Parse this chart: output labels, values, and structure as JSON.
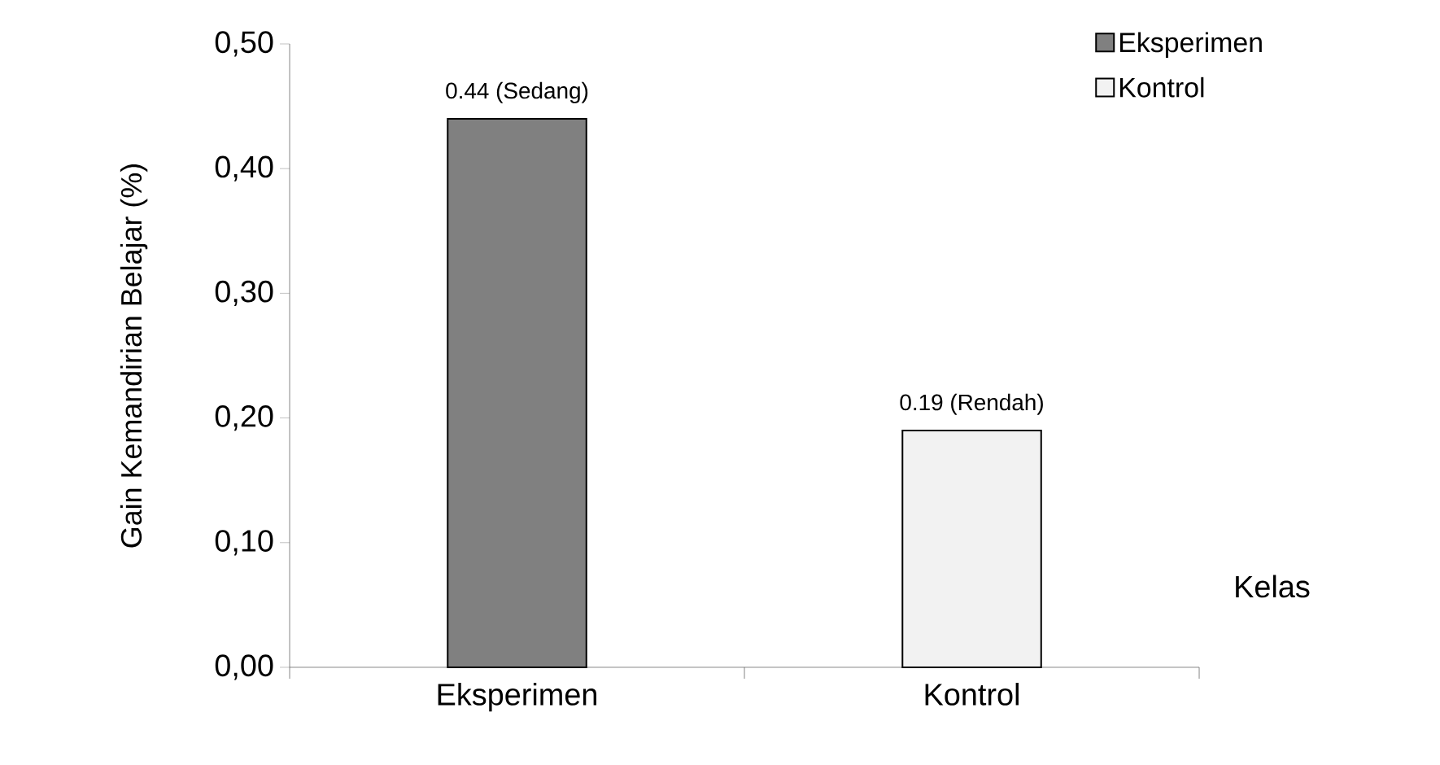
{
  "chart_data": {
    "type": "bar",
    "categories": [
      "Eksperimen",
      "Kontrol"
    ],
    "series": [
      {
        "name": "Eksperimen",
        "color": "#808080",
        "values": [
          0.44,
          null
        ],
        "value_labels": [
          "0.44 (Sedang)",
          null
        ]
      },
      {
        "name": "Kontrol",
        "color": "#f2f2f2",
        "values": [
          null,
          0.19
        ],
        "value_labels": [
          null,
          "0.19 (Rendah)"
        ]
      }
    ],
    "xlabel": "Kelas",
    "ylabel": "Gain Kemandirian Belajar (%)",
    "ylim": [
      0,
      0.5
    ],
    "yticks": [
      {
        "value": 0,
        "label": "0,00"
      },
      {
        "value": 0.1,
        "label": "0,10"
      },
      {
        "value": 0.2,
        "label": "0,20"
      },
      {
        "value": 0.3,
        "label": "0,30"
      },
      {
        "value": 0.4,
        "label": "0,40"
      },
      {
        "value": 0.5,
        "label": "0,50"
      }
    ],
    "legend": "top right"
  }
}
